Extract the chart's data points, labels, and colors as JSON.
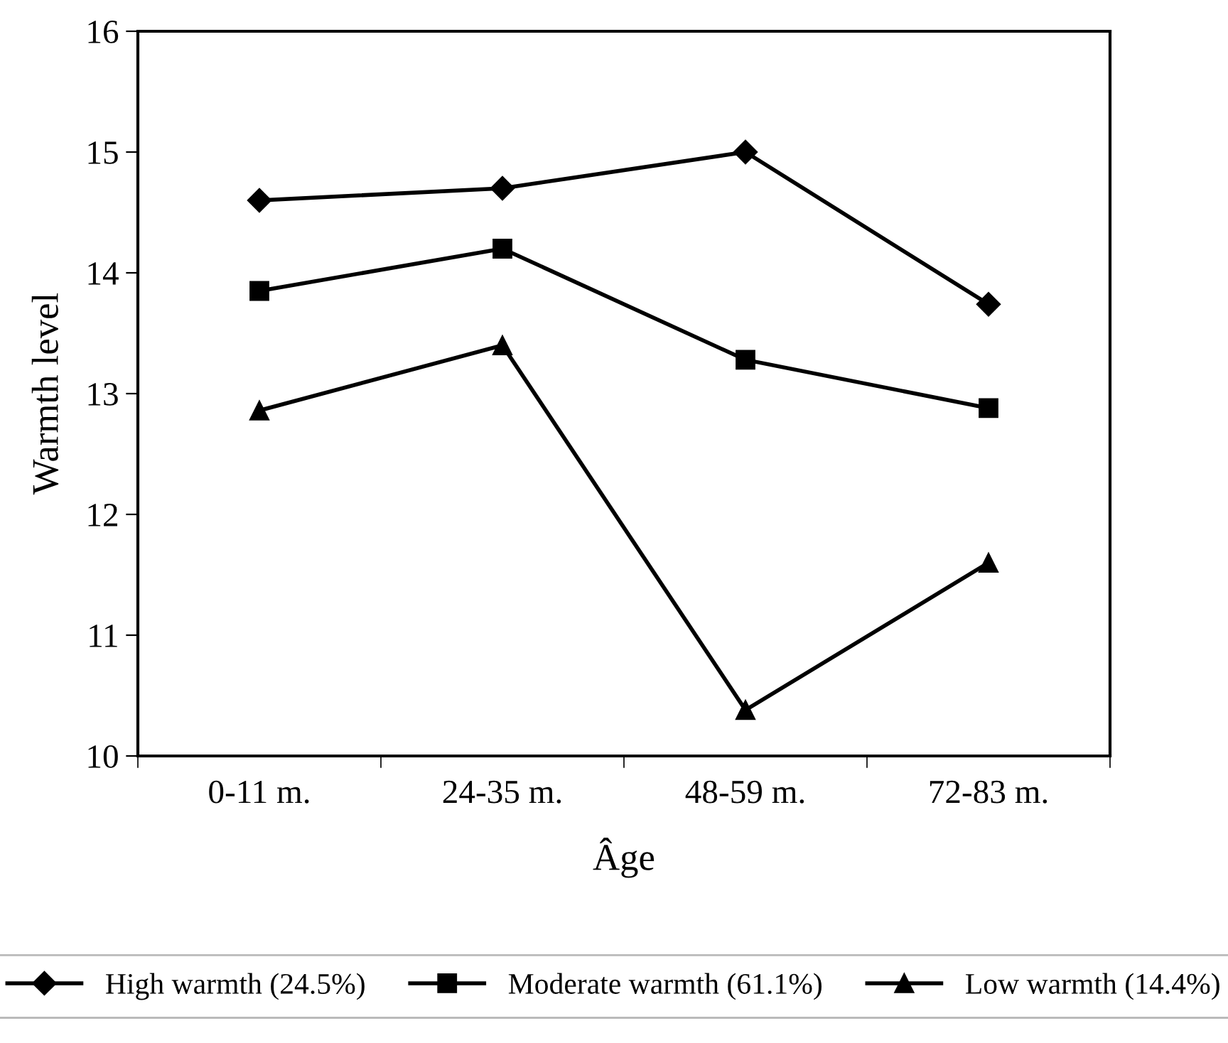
{
  "chart_data": {
    "type": "line",
    "xlabel": "Âge",
    "ylabel": "Warmth level",
    "categories": [
      "0-11 m.",
      "24-35 m.",
      "48-59 m.",
      "72-83 m."
    ],
    "series": [
      {
        "name": "High warmth (24.5%)",
        "color": "#000000",
        "marker": "diamond",
        "values": [
          14.6,
          14.7,
          15.0,
          13.74
        ]
      },
      {
        "name": "Moderate warmth (61.1%)",
        "color": "#000000",
        "marker": "square",
        "values": [
          13.85,
          14.2,
          13.28,
          12.88
        ]
      },
      {
        "name": "Low warmth (14.4%)",
        "color": "#000000",
        "marker": "triangle",
        "values": [
          12.86,
          13.4,
          10.38,
          11.6
        ]
      }
    ],
    "ylim": [
      10,
      16
    ],
    "yticks": [
      10,
      11,
      12,
      13,
      14,
      15,
      16
    ],
    "grid": false,
    "legend": "bottom",
    "line_style": "solid"
  }
}
